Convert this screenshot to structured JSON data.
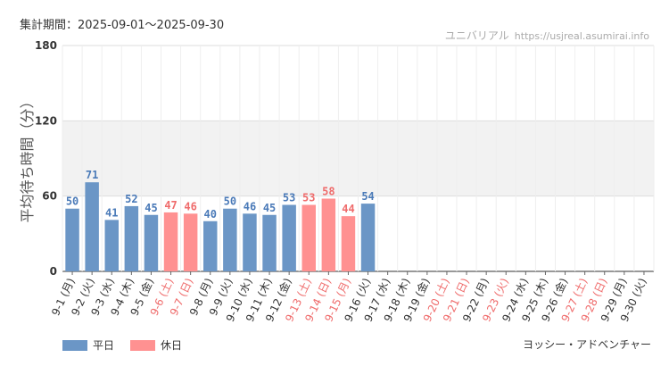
{
  "period_label": "集計期間：2025-09-01～2025-09-30",
  "site": {
    "name": "ユニバリアル",
    "url": "https://usjreal.asumirai.info"
  },
  "attraction": "ヨッシー・アドベンチャー",
  "legend": [
    {
      "label": "平日",
      "color": "#6b96c6"
    },
    {
      "label": "休日",
      "color": "#ff9191"
    }
  ],
  "colors": {
    "weekday_bar": "#6b96c6",
    "holiday_bar": "#ff9191",
    "weekday_label": "#4a7ab8",
    "holiday_label": "#ef6b6b",
    "band": "#f2f2f2",
    "grid": "#dddddd"
  },
  "chart_data": {
    "type": "bar",
    "ylabel": "平均待ち時間（分）",
    "ylim": [
      0,
      180
    ],
    "yticks": [
      0,
      60,
      120,
      180
    ],
    "band": [
      60,
      120
    ],
    "categories": [
      "9-1 (月)",
      "9-2 (火)",
      "9-3 (水)",
      "9-4 (木)",
      "9-5 (金)",
      "9-6 (土)",
      "9-7 (日)",
      "9-8 (月)",
      "9-9 (火)",
      "9-10 (水)",
      "9-11 (木)",
      "9-12 (金)",
      "9-13 (土)",
      "9-14 (日)",
      "9-15 (月)",
      "9-16 (火)",
      "9-17 (水)",
      "9-18 (木)",
      "9-19 (金)",
      "9-20 (土)",
      "9-21 (日)",
      "9-22 (月)",
      "9-23 (火)",
      "9-24 (水)",
      "9-25 (木)",
      "9-26 (金)",
      "9-27 (土)",
      "9-28 (日)",
      "9-29 (月)",
      "9-30 (火)"
    ],
    "values": [
      50,
      71,
      41,
      52,
      45,
      47,
      46,
      40,
      50,
      46,
      45,
      53,
      53,
      58,
      44,
      54,
      null,
      null,
      null,
      null,
      null,
      null,
      null,
      null,
      null,
      null,
      null,
      null,
      null,
      null
    ],
    "holiday": [
      false,
      false,
      false,
      false,
      false,
      true,
      true,
      false,
      false,
      false,
      false,
      false,
      true,
      true,
      true,
      false,
      false,
      false,
      false,
      true,
      true,
      false,
      true,
      false,
      false,
      false,
      true,
      true,
      false,
      false
    ]
  }
}
